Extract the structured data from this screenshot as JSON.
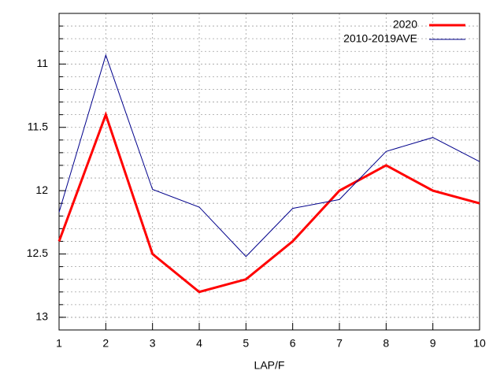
{
  "chart_data": {
    "type": "line",
    "x": [
      1,
      2,
      3,
      4,
      5,
      6,
      7,
      8,
      9,
      10
    ],
    "series": [
      {
        "name": "2020",
        "color": "#ff0000",
        "values": [
          12.4,
          11.4,
          12.5,
          12.8,
          12.7,
          12.4,
          12.0,
          11.8,
          12.0,
          12.1
        ]
      },
      {
        "name": "2010-2019AVE",
        "color": "#00008b",
        "values": [
          12.17,
          10.93,
          11.99,
          12.13,
          12.52,
          12.14,
          12.07,
          11.69,
          11.58,
          11.77
        ]
      }
    ],
    "x_label": "LAP/F",
    "xlim": [
      1,
      10
    ],
    "xticks": [
      1,
      2,
      3,
      4,
      5,
      6,
      7,
      8,
      9,
      10
    ],
    "ylim": [
      13.1,
      10.6
    ],
    "yticks": [
      11,
      11.5,
      12,
      12.5,
      13
    ],
    "yminorticks": [
      10.7,
      10.8,
      10.9,
      11.1,
      11.2,
      11.3,
      11.4,
      11.6,
      11.7,
      11.8,
      11.9,
      12.1,
      12.2,
      12.3,
      12.4,
      12.6,
      12.7,
      12.8,
      12.9,
      13.0
    ],
    "grid": true,
    "legend": "top-right"
  }
}
